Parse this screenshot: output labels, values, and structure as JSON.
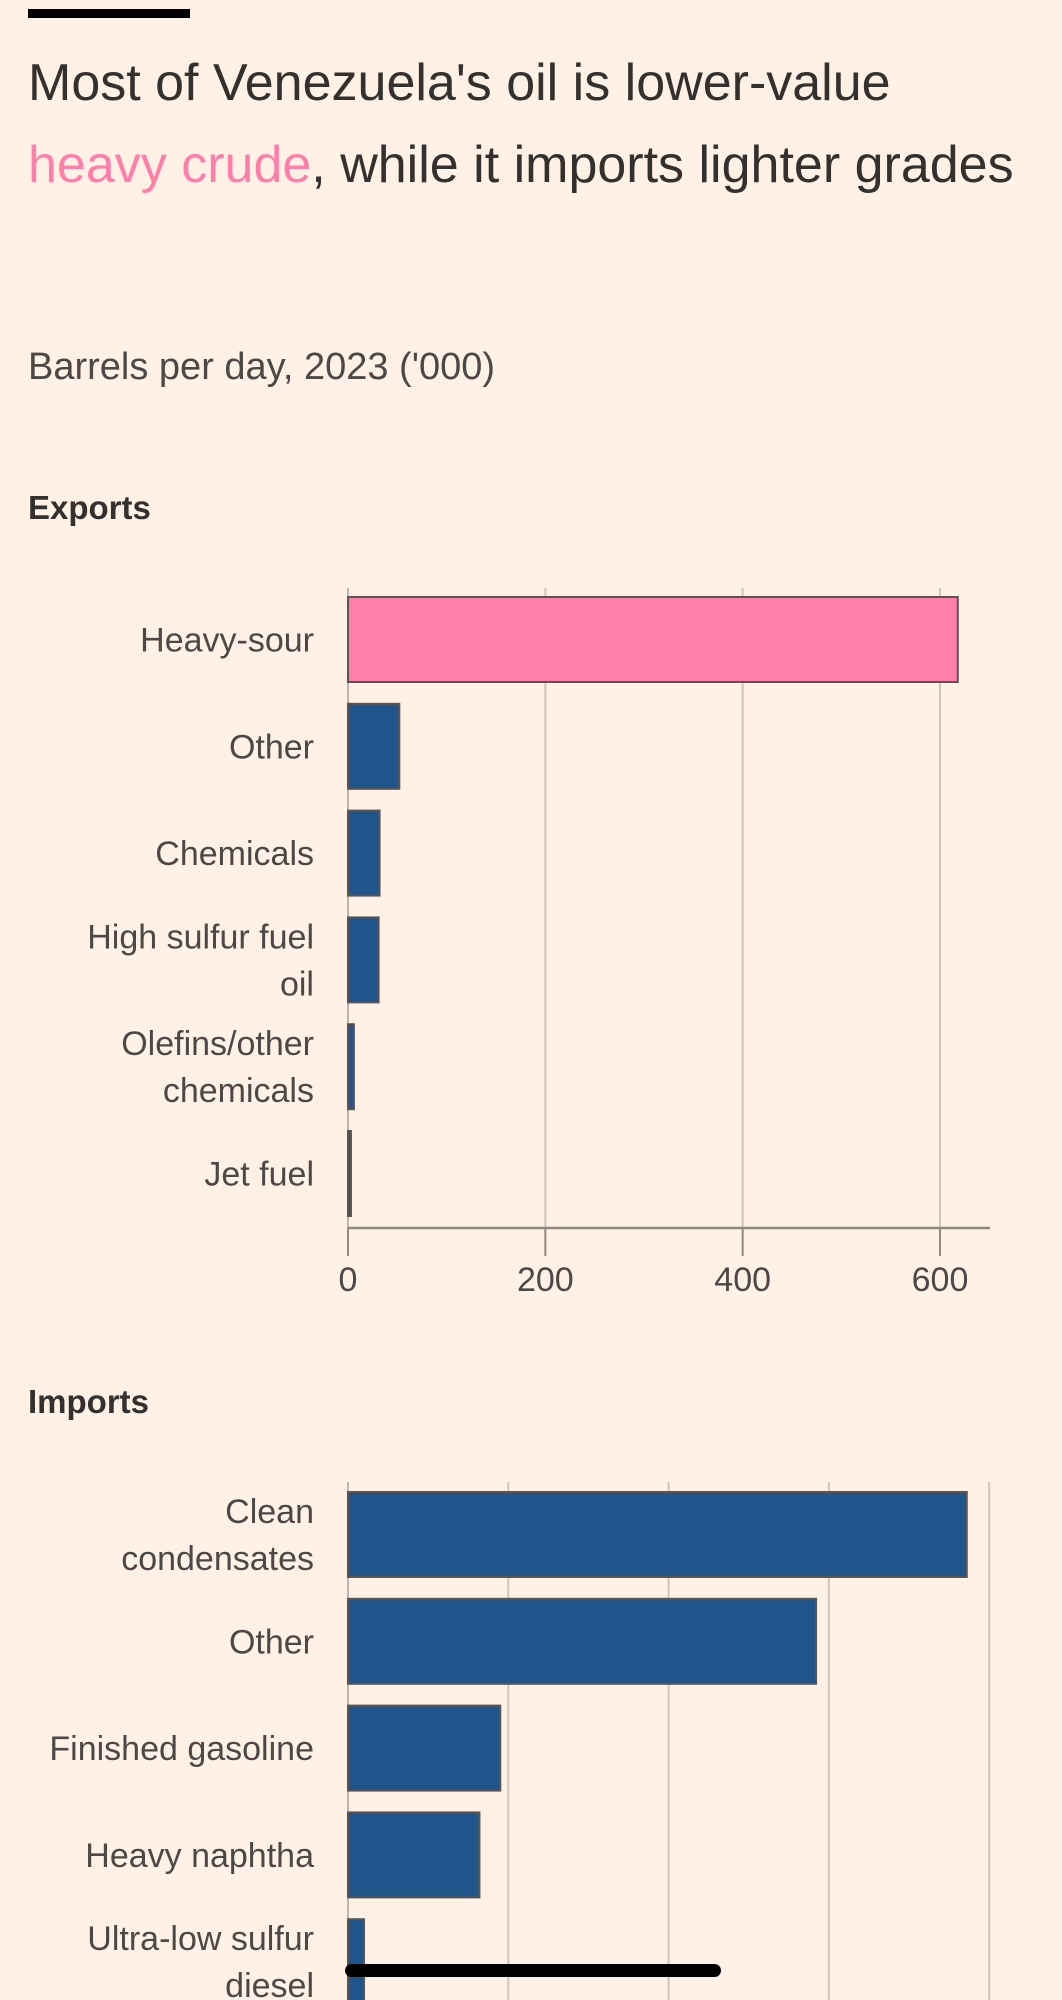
{
  "header": {
    "title_prefix": "Most of Venezuela's oil is lower-value ",
    "title_highlight": "heavy crude",
    "title_suffix": ", while it imports lighter grades",
    "subtitle": "Barrels per day, 2023 ('000)"
  },
  "colors": {
    "background": "#FFF1E5",
    "highlight": "#FF7FAA",
    "bar": "#1F558B",
    "bar_stroke": "#5a5553",
    "grid": "#CEC6B9",
    "axis": "#8f8984",
    "text": "#33302E"
  },
  "chart_data": [
    {
      "type": "bar",
      "orientation": "horizontal",
      "title": "Exports",
      "xlabel": "Barrels per day, 2023 ('000)",
      "ylabel": "",
      "categories": [
        "Heavy-sour",
        "Other",
        "Chemicals",
        "High sulfur fuel oil",
        "Olefins/other chemicals",
        "Jet fuel"
      ],
      "category_lines": [
        [
          "Heavy-sour"
        ],
        [
          "Other"
        ],
        [
          "Chemicals"
        ],
        [
          "High sulfur fuel",
          "oil"
        ],
        [
          "Olefins/other",
          "chemicals"
        ],
        [
          "Jet fuel"
        ]
      ],
      "values": [
        618,
        52,
        32,
        31,
        6,
        3
      ],
      "highlight_index": 0,
      "xlim": [
        0,
        650
      ],
      "xticks": [
        0,
        200,
        400,
        600
      ],
      "xtick_labels": [
        "0",
        "200",
        "400",
        "600"
      ],
      "grid": true
    },
    {
      "type": "bar",
      "orientation": "horizontal",
      "title": "Imports",
      "xlabel": "Barrels per day, 2023 ('000)",
      "ylabel": "",
      "categories": [
        "Clean condensates",
        "Other",
        "Finished gasoline",
        "Heavy naphtha",
        "Ultra-low sulfur diesel"
      ],
      "category_lines": [
        [
          "Clean",
          "condensates"
        ],
        [
          "Other"
        ],
        [
          "Finished gasoline"
        ],
        [
          "Heavy naphtha"
        ],
        [
          "Ultra-low sulfur",
          "diesel"
        ]
      ],
      "values": [
        386,
        292,
        95,
        82,
        10
      ],
      "highlight_index": -1,
      "xlim": [
        0,
        400
      ],
      "xticks": [
        0,
        100,
        200,
        300,
        400
      ],
      "xtick_labels": [],
      "grid": true,
      "note": "x-axis tick labels cut off in screenshot; values estimated from gridlines"
    }
  ]
}
